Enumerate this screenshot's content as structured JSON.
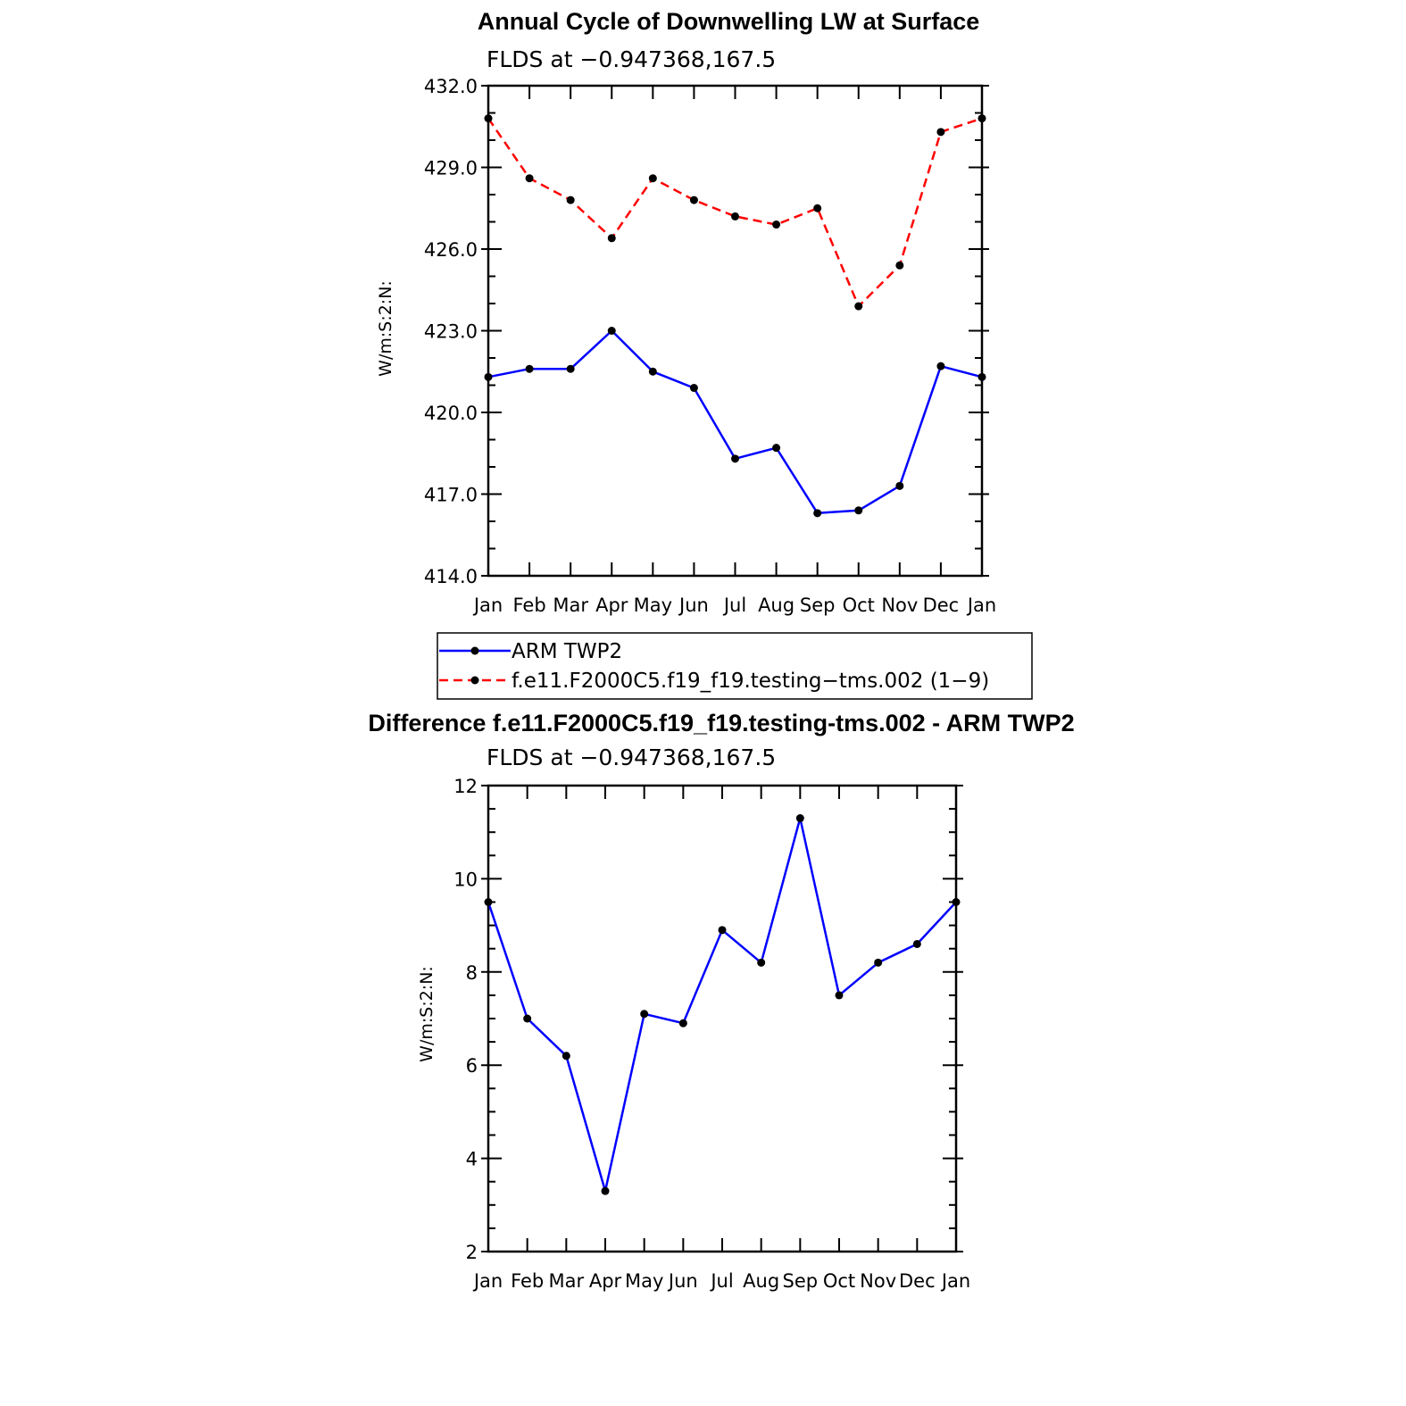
{
  "colors": {
    "arm": "#0000ff",
    "model": "#ff0000",
    "marker": "#000000",
    "axis": "#000000"
  },
  "chart_data": [
    {
      "type": "line",
      "title": "Annual Cycle of Downwelling LW at Surface",
      "subtitle": "FLDS at −0.947368,167.5",
      "ylabel": "W/m:S:2:N:",
      "xlabel": "",
      "categories": [
        "Jan",
        "Feb",
        "Mar",
        "Apr",
        "May",
        "Jun",
        "Jul",
        "Aug",
        "Sep",
        "Oct",
        "Nov",
        "Dec",
        "Jan"
      ],
      "ylim": [
        414,
        432
      ],
      "yticks": [
        414,
        417,
        420,
        423,
        426,
        429,
        432
      ],
      "ytick_labels": [
        "414.0",
        "417.0",
        "420.0",
        "423.0",
        "426.0",
        "429.0",
        "432.0"
      ],
      "legend_position": "below",
      "series": [
        {
          "name": "ARM TWP2",
          "style": "solid",
          "color": "#0000ff",
          "values": [
            421.3,
            421.6,
            421.6,
            423.0,
            421.5,
            420.9,
            418.3,
            418.7,
            416.3,
            416.4,
            417.3,
            421.7,
            421.3
          ]
        },
        {
          "name": "f.e11.F2000C5.f19_f19.testing−tms.002 (1−9)",
          "style": "dashed",
          "color": "#ff0000",
          "values": [
            430.8,
            428.6,
            427.8,
            426.4,
            428.6,
            427.8,
            427.2,
            426.9,
            427.5,
            423.9,
            425.4,
            430.3,
            430.8
          ]
        }
      ]
    },
    {
      "type": "line",
      "title": "Difference f.e11.F2000C5.f19_f19.testing-tms.002 - ARM TWP2",
      "subtitle": "FLDS at −0.947368,167.5",
      "ylabel": "W/m:S:2:N:",
      "xlabel": "",
      "categories": [
        "Jan",
        "Feb",
        "Mar",
        "Apr",
        "May",
        "Jun",
        "Jul",
        "Aug",
        "Sep",
        "Oct",
        "Nov",
        "Dec",
        "Jan"
      ],
      "ylim": [
        2,
        12
      ],
      "yticks": [
        2,
        4,
        6,
        8,
        10,
        12
      ],
      "ytick_labels": [
        "2",
        "4",
        "6",
        "8",
        "10",
        "12"
      ],
      "series": [
        {
          "name": "Difference",
          "style": "solid",
          "color": "#0000ff",
          "values": [
            9.5,
            7.0,
            6.2,
            3.3,
            7.1,
            6.9,
            8.9,
            8.2,
            11.3,
            7.5,
            8.2,
            8.6,
            9.5
          ]
        }
      ]
    }
  ]
}
